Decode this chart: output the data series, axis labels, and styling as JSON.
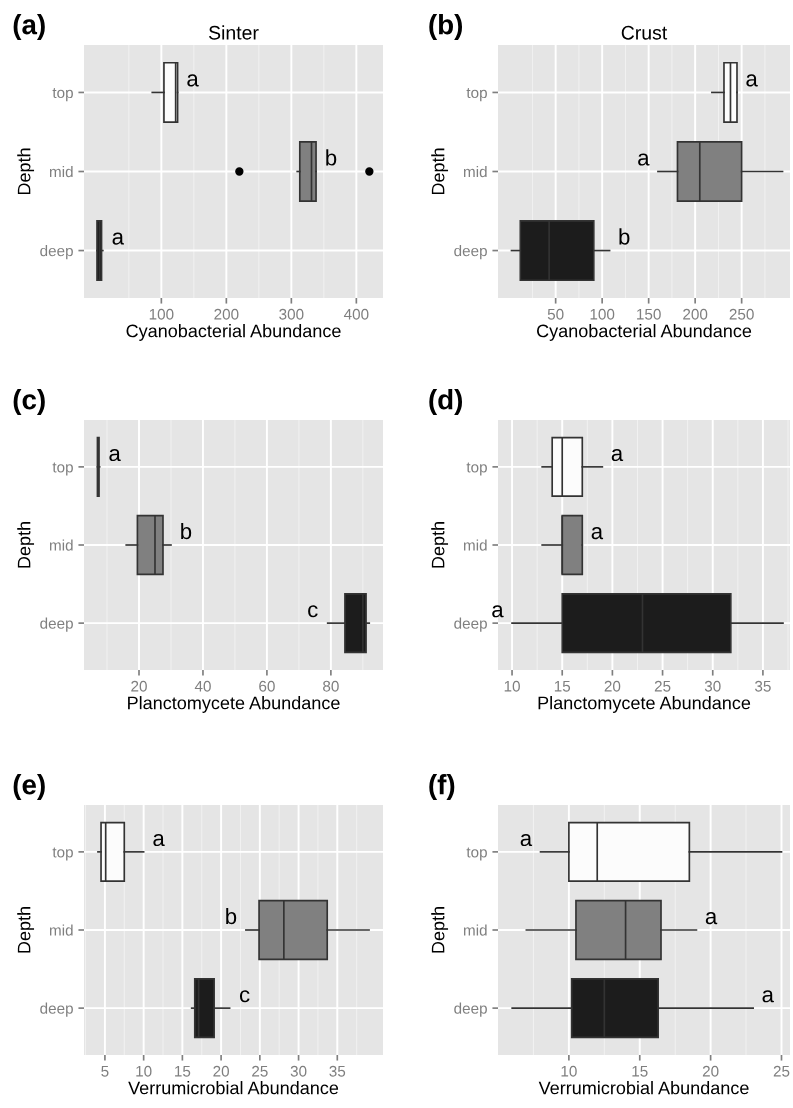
{
  "chart_data": [
    {
      "type": "box",
      "orientation": "horizontal",
      "title": "Sinter",
      "xlabel": "Cyanobacterial Abundance",
      "ylabel": "Depth",
      "categories": [
        "top",
        "mid",
        "deep"
      ],
      "colors": [
        "#fcfcfc",
        "#808080",
        "#1c1c1c"
      ],
      "xlim": [
        -19,
        441
      ],
      "xticks": [
        100,
        200,
        300,
        400
      ],
      "grid": true,
      "boxes": [
        {
          "low": 86,
          "q1": 104,
          "median": 122,
          "q3": 125,
          "high": 125
        },
        {
          "low": 309,
          "q1": 313,
          "median": 331,
          "q3": 338,
          "high": 338,
          "outliers": [
            220,
            420
          ]
        },
        {
          "low": 1,
          "q1": 1,
          "median": 5,
          "q3": 8,
          "high": 10
        }
      ],
      "annotations": [
        "(a)",
        "a",
        "b",
        "a"
      ]
    },
    {
      "type": "box",
      "orientation": "horizontal",
      "title": "Crust",
      "xlabel": "Cyanobacterial Abundance",
      "ylabel": "Depth",
      "categories": [
        "top",
        "mid",
        "deep"
      ],
      "colors": [
        "#fcfcfc",
        "#808080",
        "#1c1c1c"
      ],
      "xlim": [
        -12,
        302
      ],
      "xticks": [
        50,
        100,
        150,
        200,
        250
      ],
      "grid": true,
      "boxes": [
        {
          "low": 218,
          "q1": 231,
          "median": 238,
          "q3": 245,
          "high": 245
        },
        {
          "low": 160,
          "q1": 181,
          "median": 205,
          "q3": 250,
          "high": 294
        },
        {
          "low": 2.5,
          "q1": 12,
          "median": 43,
          "q3": 91,
          "high": 108
        }
      ],
      "annotations": [
        "(b)",
        "a",
        "a",
        "b"
      ]
    },
    {
      "type": "box",
      "orientation": "horizontal",
      "xlabel": "Planctomycete Abundance",
      "ylabel": "Depth",
      "categories": [
        "top",
        "mid",
        "deep"
      ],
      "colors": [
        "#fcfcfc",
        "#808080",
        "#1c1c1c"
      ],
      "xlim": [
        2.8,
        96.3
      ],
      "xticks": [
        20,
        40,
        60,
        80
      ],
      "grid": true,
      "boxes": [
        {
          "low": 7,
          "q1": 7,
          "median": 7.2,
          "q3": 7.5,
          "high": 7.7
        },
        {
          "low": 16,
          "q1": 19.5,
          "median": 25,
          "q3": 27.5,
          "high": 30
        },
        {
          "low": 79,
          "q1": 84.4,
          "median": 90,
          "q3": 91,
          "high": 92
        }
      ],
      "annotations": [
        "(c)",
        "a",
        "b",
        "c"
      ]
    },
    {
      "type": "box",
      "orientation": "horizontal",
      "xlabel": "Planctomycete Abundance",
      "ylabel": "Depth",
      "categories": [
        "top",
        "mid",
        "deep"
      ],
      "colors": [
        "#fcfcfc",
        "#808080",
        "#1c1c1c"
      ],
      "xlim": [
        8.6,
        37.7
      ],
      "xticks": [
        10,
        15,
        20,
        25,
        30,
        35
      ],
      "grid": true,
      "boxes": [
        {
          "low": 13,
          "q1": 14,
          "median": 15,
          "q3": 17,
          "high": 19
        },
        {
          "low": 13,
          "q1": 15,
          "median": 15,
          "q3": 17,
          "high": 17
        },
        {
          "low": 10,
          "q1": 15,
          "median": 23,
          "q3": 31.8,
          "high": 37
        }
      ],
      "annotations": [
        "(d)",
        "a",
        "a",
        "a"
      ]
    },
    {
      "type": "box",
      "orientation": "horizontal",
      "xlabel": "Verrumicrobial Abundance",
      "ylabel": "Depth",
      "categories": [
        "top",
        "mid",
        "deep"
      ],
      "colors": [
        "#fcfcfc",
        "#808080",
        "#1c1c1c"
      ],
      "xlim": [
        2.3,
        40.9
      ],
      "xticks": [
        5,
        10,
        15,
        20,
        25,
        30,
        35
      ],
      "grid": true,
      "boxes": [
        {
          "low": 4.1,
          "q1": 4.5,
          "median": 5.1,
          "q3": 7.5,
          "high": 10
        },
        {
          "low": 23.2,
          "q1": 24.9,
          "median": 28.1,
          "q3": 33.7,
          "high": 39.1
        },
        {
          "low": 16.2,
          "q1": 16.6,
          "median": 17.1,
          "q3": 19.1,
          "high": 21.1
        }
      ],
      "annotations": [
        "(e)",
        "a",
        "b",
        "c"
      ]
    },
    {
      "type": "box",
      "orientation": "horizontal",
      "xlabel": "Verrumicrobial Abundance",
      "ylabel": "Depth",
      "categories": [
        "top",
        "mid",
        "deep"
      ],
      "colors": [
        "#fcfcfc",
        "#808080",
        "#1c1c1c"
      ],
      "xlim": [
        5,
        25.6
      ],
      "xticks": [
        10,
        15,
        20,
        25
      ],
      "grid": true,
      "boxes": [
        {
          "low": 8,
          "q1": 10,
          "median": 12,
          "q3": 18.5,
          "high": 25
        },
        {
          "low": 7,
          "q1": 10.5,
          "median": 14,
          "q3": 16.5,
          "high": 19
        },
        {
          "low": 6,
          "q1": 10.2,
          "median": 12.5,
          "q3": 16.3,
          "high": 23
        }
      ],
      "annotations": [
        "(f)",
        "a",
        "a",
        "a"
      ]
    }
  ]
}
